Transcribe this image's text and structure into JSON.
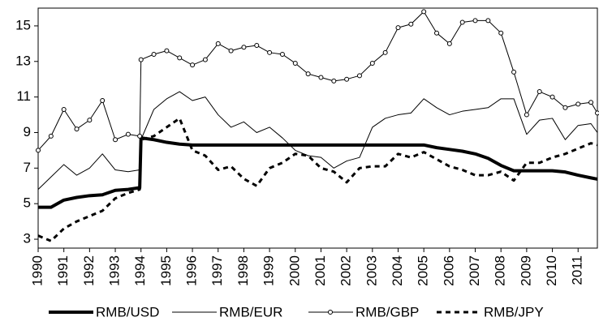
{
  "chart_data": {
    "type": "line",
    "x": [
      1990,
      1990.5,
      1991,
      1991.5,
      1992,
      1992.5,
      1993,
      1993.5,
      1993.95,
      1994,
      1994.5,
      1995,
      1995.5,
      1996,
      1996.5,
      1997,
      1997.5,
      1998,
      1998.5,
      1999,
      1999.5,
      2000,
      2000.5,
      2001,
      2001.5,
      2002,
      2002.5,
      2003,
      2003.5,
      2004,
      2004.5,
      2005,
      2005.5,
      2006,
      2006.5,
      2007,
      2007.5,
      2008,
      2008.5,
      2009,
      2009.5,
      2010,
      2010.5,
      2011,
      2011.5,
      2011.75
    ],
    "series": [
      {
        "name": "RMB/USD",
        "color": "#000000",
        "width": 4,
        "dash": "none",
        "marker": false,
        "values": [
          4.8,
          4.8,
          5.2,
          5.35,
          5.45,
          5.5,
          5.75,
          5.8,
          5.9,
          8.7,
          8.6,
          8.45,
          8.35,
          8.3,
          8.3,
          8.3,
          8.3,
          8.3,
          8.3,
          8.3,
          8.3,
          8.3,
          8.3,
          8.3,
          8.3,
          8.3,
          8.3,
          8.3,
          8.3,
          8.3,
          8.3,
          8.3,
          8.15,
          8.05,
          7.95,
          7.8,
          7.55,
          7.15,
          6.85,
          6.85,
          6.85,
          6.85,
          6.78,
          6.6,
          6.45,
          6.38
        ]
      },
      {
        "name": "RMB/EUR",
        "color": "#000000",
        "width": 1,
        "dash": "none",
        "marker": false,
        "values": [
          5.8,
          6.5,
          7.2,
          6.6,
          7.0,
          7.8,
          6.9,
          6.8,
          6.9,
          8.6,
          10.3,
          10.9,
          11.3,
          10.8,
          11.0,
          10.0,
          9.3,
          9.6,
          9.0,
          9.3,
          8.7,
          8.0,
          7.7,
          7.6,
          7.0,
          7.4,
          7.6,
          9.3,
          9.8,
          10.0,
          10.1,
          10.9,
          10.4,
          10.0,
          10.2,
          10.3,
          10.4,
          10.9,
          10.9,
          8.9,
          9.7,
          9.8,
          8.6,
          9.4,
          9.5,
          9.0
        ]
      },
      {
        "name": "RMB/GBP",
        "color": "#000000",
        "width": 1,
        "dash": "none",
        "marker": true,
        "values": [
          8.0,
          8.8,
          10.3,
          9.2,
          9.7,
          10.8,
          8.6,
          8.9,
          8.8,
          13.1,
          13.4,
          13.6,
          13.2,
          12.8,
          13.1,
          14.0,
          13.6,
          13.8,
          13.9,
          13.5,
          13.4,
          12.9,
          12.3,
          12.1,
          11.9,
          12.0,
          12.2,
          12.9,
          13.5,
          14.9,
          15.1,
          15.8,
          14.6,
          14.0,
          15.2,
          15.3,
          15.3,
          14.6,
          12.4,
          10.0,
          11.3,
          11.0,
          10.4,
          10.6,
          10.7,
          10.1
        ]
      },
      {
        "name": "RMB/JPY",
        "color": "#000000",
        "width": 3,
        "dash": "6 5",
        "marker": false,
        "values": [
          3.2,
          2.9,
          3.6,
          4.0,
          4.3,
          4.6,
          5.3,
          5.6,
          5.8,
          8.6,
          8.8,
          9.3,
          9.8,
          8.0,
          7.7,
          6.9,
          7.1,
          6.4,
          6.0,
          7.0,
          7.3,
          7.8,
          7.7,
          7.0,
          6.8,
          6.2,
          7.0,
          7.1,
          7.1,
          7.8,
          7.6,
          7.9,
          7.5,
          7.1,
          6.9,
          6.6,
          6.6,
          6.8,
          6.3,
          7.3,
          7.3,
          7.6,
          7.8,
          8.1,
          8.4,
          8.3
        ]
      }
    ],
    "xlim": [
      1990,
      2011.75
    ],
    "xticks": [
      1990,
      1991,
      1992,
      1993,
      1994,
      1995,
      1996,
      1997,
      1998,
      1999,
      2000,
      2001,
      2002,
      2003,
      2004,
      2005,
      2006,
      2007,
      2008,
      2009,
      2010,
      2011
    ],
    "ylim": [
      2.5,
      16
    ],
    "yticks": [
      3,
      5,
      7,
      9,
      11,
      13,
      15
    ],
    "grid": false,
    "legend": "bottom"
  }
}
